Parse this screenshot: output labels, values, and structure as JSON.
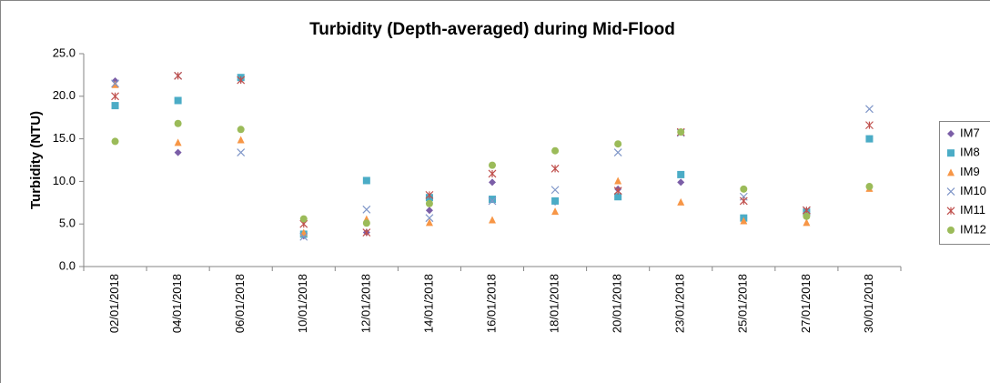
{
  "chart_data": {
    "type": "scatter",
    "title": "Turbidity (Depth-averaged) during Mid-Flood",
    "y_label": "Turbidity (NTU)",
    "categories": [
      "02/01/2018",
      "04/01/2018",
      "06/01/2018",
      "10/01/2018",
      "12/01/2018",
      "14/01/2018",
      "16/01/2018",
      "18/01/2018",
      "20/01/2018",
      "23/01/2018",
      "25/01/2018",
      "27/01/2018",
      "30/01/2018"
    ],
    "series": [
      {
        "name": "IM7",
        "color": "#7b5ea7",
        "marker": "diamond",
        "values": [
          21.8,
          13.4,
          22.0,
          3.6,
          4.0,
          6.6,
          9.9,
          7.6,
          9.1,
          9.9,
          5.7,
          6.5,
          15.0
        ]
      },
      {
        "name": "IM8",
        "color": "#4bacc6",
        "marker": "square",
        "values": [
          18.9,
          19.5,
          22.2,
          3.8,
          10.1,
          8.1,
          7.9,
          7.7,
          8.2,
          10.8,
          5.7,
          6.4,
          15.0
        ]
      },
      {
        "name": "IM9",
        "color": "#f79646",
        "marker": "triangle",
        "values": [
          21.4,
          14.6,
          14.9,
          4.0,
          5.6,
          5.2,
          5.5,
          6.5,
          10.1,
          7.6,
          5.4,
          5.2,
          9.2
        ]
      },
      {
        "name": "IM10",
        "color": "#7f96c8",
        "marker": "x",
        "values": [
          21.5,
          22.4,
          13.4,
          3.5,
          6.7,
          5.7,
          7.7,
          9.0,
          13.4,
          15.7,
          8.2,
          6.6,
          18.5
        ]
      },
      {
        "name": "IM11",
        "color": "#c0504d",
        "marker": "star",
        "values": [
          20.0,
          22.4,
          21.9,
          5.0,
          4.0,
          8.4,
          10.9,
          11.5,
          8.9,
          15.8,
          7.7,
          6.6,
          16.6
        ]
      },
      {
        "name": "IM12",
        "color": "#9bbb59",
        "marker": "circle",
        "values": [
          14.7,
          16.8,
          16.1,
          5.6,
          5.1,
          7.4,
          11.9,
          13.6,
          14.4,
          15.8,
          9.1,
          5.9,
          9.4
        ]
      }
    ],
    "ylim": [
      0,
      25
    ],
    "yticks": [
      {
        "value": 0,
        "label": "0.0"
      },
      {
        "value": 5,
        "label": "5.0"
      },
      {
        "value": 10,
        "label": "10.0"
      },
      {
        "value": 15,
        "label": "15.0"
      },
      {
        "value": 20,
        "label": "20.0"
      },
      {
        "value": 25,
        "label": "25.0"
      }
    ],
    "grid": false,
    "legend": "right"
  }
}
